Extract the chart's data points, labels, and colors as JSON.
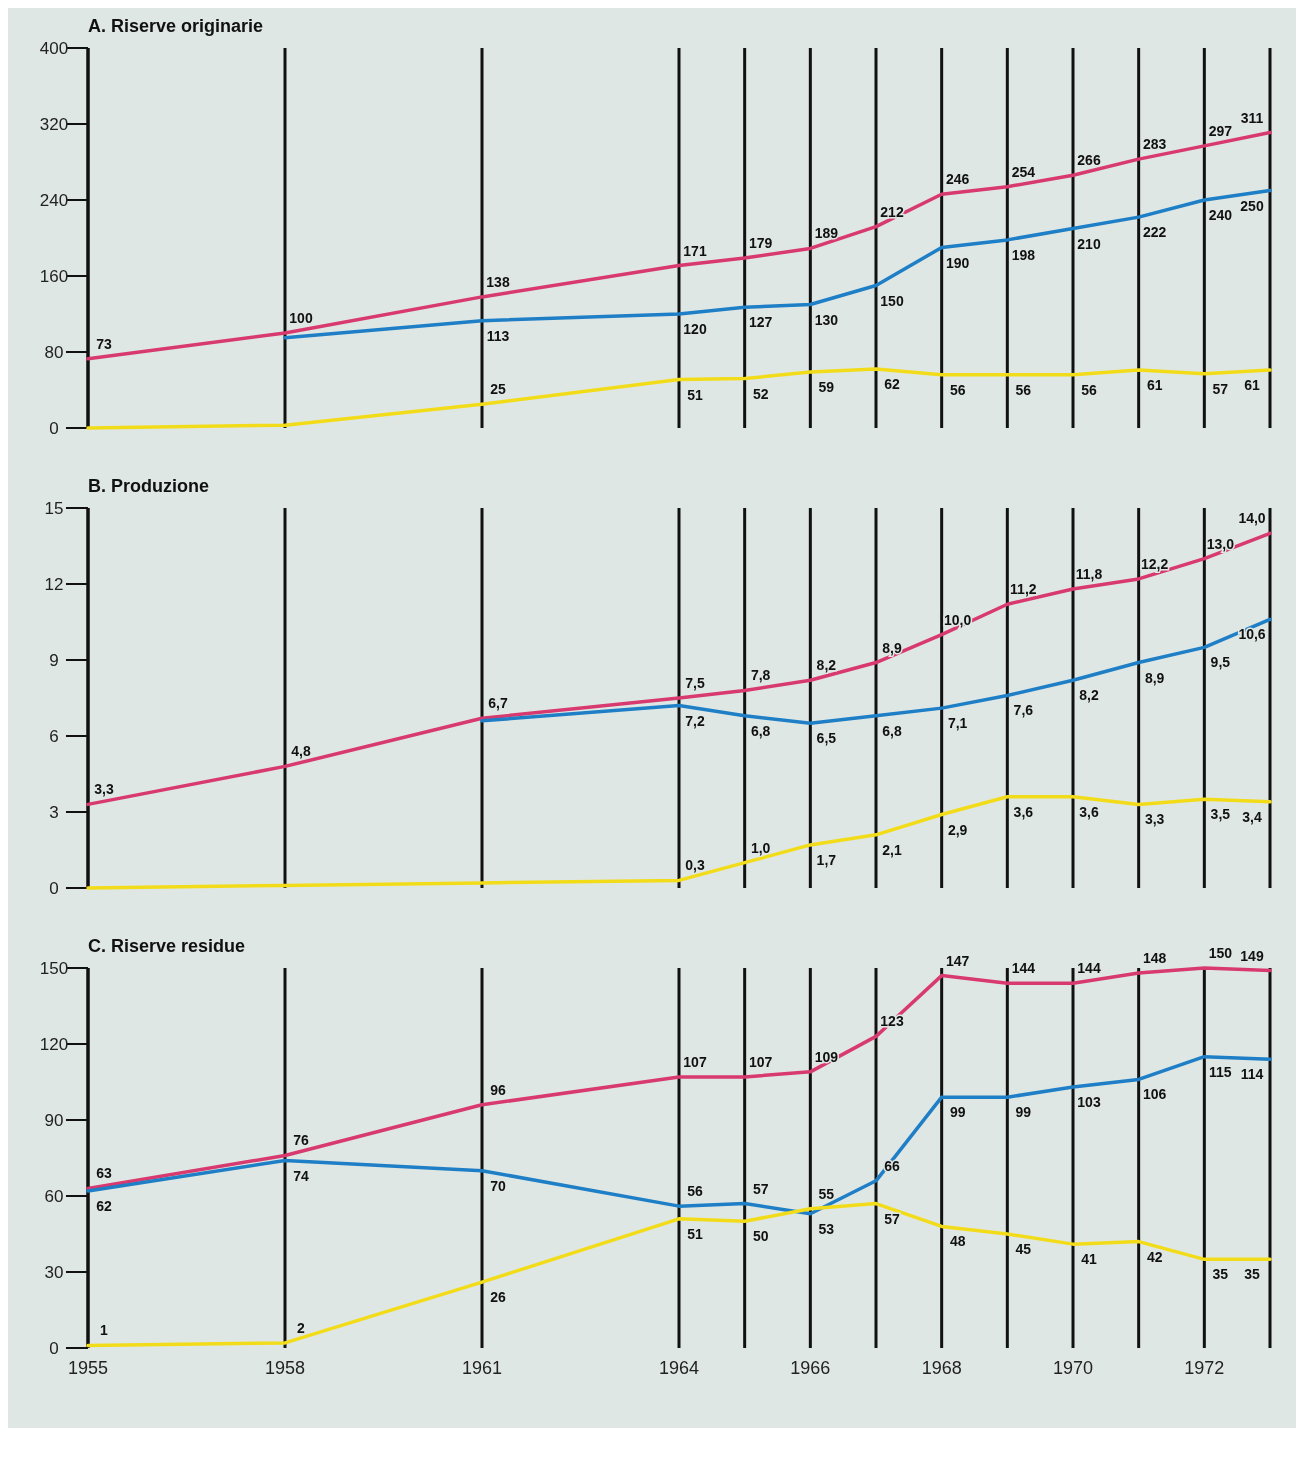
{
  "chart_data": [
    {
      "type": "line",
      "title": "A. Riserve originarie",
      "x": [
        1955,
        1958,
        1961,
        1964,
        1965,
        1966,
        1967,
        1968,
        1969,
        1970,
        1971,
        1972,
        1973
      ],
      "xlim": [
        1955,
        1973
      ],
      "xticks": [
        1955,
        1958,
        1961,
        1964,
        {
          "value": 1965,
          "label": null
        },
        1966,
        {
          "value": 1967,
          "label": null
        },
        1968,
        {
          "value": 1969,
          "label": null
        },
        1970,
        {
          "value": 1971,
          "label": null
        },
        1972,
        {
          "value": 1973,
          "label": null
        }
      ],
      "ylim": [
        0,
        400
      ],
      "yticks": [
        0,
        80,
        160,
        240,
        320,
        400
      ],
      "grid": "x",
      "tick_labels": "y",
      "marker": "none",
      "series": [
        {
          "color": "#d83a70",
          "values": [
            73,
            100,
            138,
            171,
            179,
            189,
            212,
            246,
            254,
            266,
            283,
            297,
            311
          ],
          "value_labels": [
            "73",
            "100",
            "138",
            "171",
            "179",
            "189",
            "212",
            "246",
            "254",
            "266",
            "283",
            "297",
            "311"
          ]
        },
        {
          "color": "#1f7fc6",
          "values": [
            null,
            95,
            113,
            120,
            127,
            130,
            150,
            190,
            198,
            210,
            222,
            240,
            250
          ],
          "value_labels": [
            null,
            null,
            "113",
            "120",
            "127",
            "130",
            "150",
            "190",
            "198",
            "210",
            "222",
            "240",
            "250"
          ]
        },
        {
          "color": "#f2dc1a",
          "values": [
            0,
            3,
            25,
            51,
            52,
            59,
            62,
            56,
            56,
            56,
            61,
            57,
            61
          ],
          "value_labels": [
            null,
            null,
            "25",
            "51",
            "52",
            "59",
            "62",
            "56",
            "56",
            "56",
            "61",
            "57",
            "61"
          ]
        }
      ]
    },
    {
      "type": "line",
      "title": "B. Produzione",
      "x": [
        1955,
        1958,
        1961,
        1964,
        1965,
        1966,
        1967,
        1968,
        1969,
        1970,
        1971,
        1972,
        1973
      ],
      "xlim": [
        1955,
        1973
      ],
      "xticks": [
        1955,
        1958,
        1961,
        1964,
        {
          "value": 1965,
          "label": null
        },
        1966,
        {
          "value": 1967,
          "label": null
        },
        1968,
        {
          "value": 1969,
          "label": null
        },
        1970,
        {
          "value": 1971,
          "label": null
        },
        1972,
        {
          "value": 1973,
          "label": null
        }
      ],
      "ylim": [
        0,
        15
      ],
      "yticks": [
        0,
        3,
        6,
        9,
        12,
        15
      ],
      "grid": "x",
      "tick_labels": "y",
      "marker": "none",
      "series": [
        {
          "color": "#d83a70",
          "values": [
            3.3,
            4.8,
            6.7,
            7.5,
            7.8,
            8.2,
            8.9,
            10.0,
            11.2,
            11.8,
            12.2,
            13.0,
            14.0
          ],
          "value_labels": [
            "3,3",
            "4,8",
            "6,7",
            "7,5",
            "7,8",
            "8,2",
            "8,9",
            "10,0",
            "11,2",
            "11,8",
            "12,2",
            "13,0",
            "14,0"
          ]
        },
        {
          "color": "#1f7fc6",
          "values": [
            null,
            null,
            6.6,
            7.2,
            6.8,
            6.5,
            6.8,
            7.1,
            7.6,
            8.2,
            8.9,
            9.5,
            10.6
          ],
          "value_labels": [
            null,
            null,
            null,
            "7,2",
            "6,8",
            "6,5",
            "6,8",
            "7,1",
            "7,6",
            "8,2",
            "8,9",
            "9,5",
            "10,6"
          ]
        },
        {
          "color": "#f2dc1a",
          "values": [
            0,
            0.1,
            0.2,
            0.3,
            1.0,
            1.7,
            2.1,
            2.9,
            3.6,
            3.6,
            3.3,
            3.5,
            3.4
          ],
          "value_labels": [
            null,
            null,
            null,
            "0,3",
            "1,0",
            "1,7",
            "2,1",
            "2,9",
            "3,6",
            "3,6",
            "3,3",
            "3,5",
            "3,4"
          ]
        }
      ]
    },
    {
      "type": "line",
      "title": "C. Riserve residue",
      "x": [
        1955,
        1958,
        1961,
        1964,
        1965,
        1966,
        1967,
        1968,
        1969,
        1970,
        1971,
        1972,
        1973
      ],
      "xlim": [
        1955,
        1973
      ],
      "xticks": [
        1955,
        1958,
        1961,
        1964,
        {
          "value": 1965,
          "label": null
        },
        1966,
        {
          "value": 1967,
          "label": null
        },
        1968,
        {
          "value": 1969,
          "label": null
        },
        1970,
        {
          "value": 1971,
          "label": null
        },
        1972,
        {
          "value": 1973,
          "label": null
        }
      ],
      "ylim": [
        0,
        150
      ],
      "yticks": [
        0,
        30,
        60,
        90,
        120,
        150
      ],
      "grid": "x",
      "marker": "none",
      "series": [
        {
          "color": "#d83a70",
          "values": [
            63,
            76,
            96,
            107,
            107,
            109,
            123,
            147,
            144,
            144,
            148,
            150,
            149
          ],
          "value_labels": [
            "63",
            "76",
            "96",
            "107",
            "107",
            "109",
            "123",
            "147",
            "144",
            "144",
            "148",
            "150",
            "149"
          ]
        },
        {
          "color": "#1f7fc6",
          "values": [
            62,
            74,
            70,
            56,
            57,
            53,
            66,
            99,
            99,
            103,
            106,
            115,
            114
          ],
          "value_labels": [
            "62",
            "74",
            "70",
            "56",
            "57",
            "53",
            "66",
            "99",
            "99",
            "103",
            "106",
            "115",
            "114"
          ]
        },
        {
          "color": "#f2dc1a",
          "values": [
            1,
            2,
            26,
            51,
            50,
            55,
            57,
            48,
            45,
            41,
            42,
            35,
            35
          ],
          "value_labels": [
            "1",
            "2",
            "26",
            "51",
            "50",
            "55",
            "57",
            "48",
            "45",
            "41",
            "42",
            "35",
            "35"
          ]
        }
      ]
    }
  ]
}
